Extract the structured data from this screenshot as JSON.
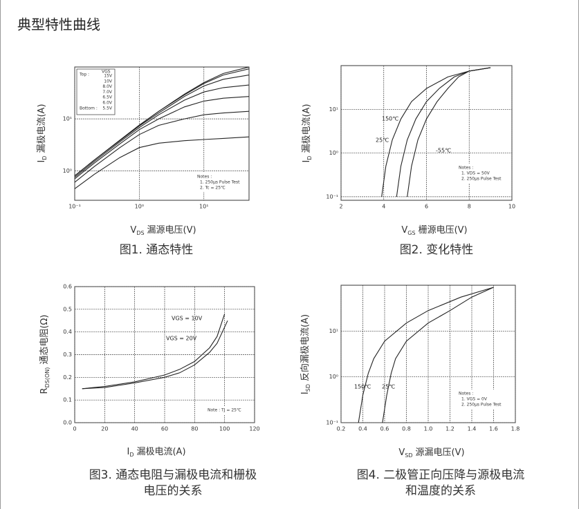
{
  "header": {
    "title": "典型特性曲线"
  },
  "chart_data": [
    {
      "type": "line",
      "xlog": true,
      "ylog": true,
      "grid": true,
      "color": "#222",
      "xlabel": {
        "symbol": "V",
        "sub": "DS",
        "text": "漏源电压(V)"
      },
      "ylabel": {
        "symbol": "I",
        "sub": "D",
        "text": "漏极电流(A)"
      },
      "caption": [
        "图1. 通态特性"
      ],
      "xlim": [
        0.1,
        50
      ],
      "ylim": [
        0.27,
        100
      ],
      "xticks": [
        {
          "value": 0.1,
          "label": "10⁻¹"
        },
        {
          "value": 1,
          "label": "10⁰"
        },
        {
          "value": 10,
          "label": "10¹"
        }
      ],
      "yticks": [
        {
          "value": 1,
          "label": "10⁰"
        },
        {
          "value": 10,
          "label": "10¹"
        }
      ],
      "legend": {
        "title": "VGS",
        "top_label": "Top :",
        "bottom_label": "Bottom :"
      },
      "notes": [
        "Notes :",
        "1. 250μs Pulse Test",
        "2. Tc = 25℃"
      ],
      "x": [
        0.1,
        0.2,
        0.5,
        1,
        2,
        5,
        10,
        20,
        50
      ],
      "series": [
        {
          "name": "15V",
          "values": [
            0.8,
            1.6,
            3.9,
            7.6,
            14,
            30,
            50,
            75,
            100
          ]
        },
        {
          "name": "10V",
          "values": [
            0.8,
            1.6,
            3.9,
            7.5,
            14,
            29,
            48,
            70,
            92
          ]
        },
        {
          "name": "8.0V",
          "values": [
            0.8,
            1.6,
            3.8,
            7.3,
            13,
            27,
            43,
            58,
            70
          ]
        },
        {
          "name": "7.0V",
          "values": [
            0.75,
            1.5,
            3.6,
            6.8,
            12,
            23,
            33,
            40,
            45
          ]
        },
        {
          "name": "6.5V",
          "values": [
            0.7,
            1.4,
            3.3,
            6.2,
            10,
            17,
            22,
            25,
            27
          ]
        },
        {
          "name": "6.0V",
          "values": [
            0.6,
            1.2,
            2.8,
            5,
            7.5,
            10,
            12,
            13,
            14
          ]
        },
        {
          "name": "5.5V",
          "values": [
            0.45,
            0.85,
            1.8,
            2.8,
            3.4,
            3.8,
            4,
            4.2,
            4.5
          ]
        }
      ]
    },
    {
      "type": "line",
      "xlog": false,
      "ylog": true,
      "grid": true,
      "color": "#222",
      "xlabel": {
        "symbol": "V",
        "sub": "GS",
        "text": "栅源电压(V)"
      },
      "ylabel": {
        "symbol": "I",
        "sub": "D",
        "text": "漏极电流(A)"
      },
      "caption": [
        "图2. 变化特性"
      ],
      "xlim": [
        2,
        10
      ],
      "ylim": [
        0.083,
        100
      ],
      "xticks": [
        2,
        4,
        6,
        8,
        10
      ],
      "yticks": [
        {
          "value": 0.1,
          "label": "10⁻¹"
        },
        {
          "value": 1,
          "label": "10⁰"
        },
        {
          "value": 10,
          "label": "10¹"
        }
      ],
      "notes": [
        "Notes :",
        "1. VDS = 50V",
        "2. 250μs Pulse Test"
      ],
      "series": [
        {
          "name": "150℃",
          "x": [
            3.9,
            4.1,
            4.4,
            4.8,
            5.3,
            6,
            7,
            8,
            9
          ],
          "values": [
            0.1,
            0.5,
            2,
            6,
            15,
            30,
            55,
            75,
            90
          ]
        },
        {
          "name": "25℃",
          "x": [
            4.6,
            4.8,
            5.1,
            5.5,
            6,
            6.6,
            7.3,
            8,
            9
          ],
          "values": [
            0.1,
            0.5,
            2,
            6,
            15,
            30,
            55,
            75,
            90
          ]
        },
        {
          "name": "-55℃",
          "x": [
            5.1,
            5.3,
            5.6,
            6,
            6.5,
            7,
            7.5,
            8,
            9
          ],
          "values": [
            0.1,
            0.5,
            2,
            6,
            15,
            30,
            55,
            75,
            90
          ]
        }
      ]
    },
    {
      "type": "line",
      "xlog": false,
      "ylog": false,
      "grid": true,
      "color": "#222",
      "xlabel": {
        "symbol": "I",
        "sub": "D",
        "text": "漏极电流(A)"
      },
      "ylabel": {
        "symbol": "R",
        "sub": "DS(ON)",
        "text": "通态电阻(Ω)"
      },
      "caption": [
        "图3. 通态电阻与漏极电流和栅极",
        "电压的关系"
      ],
      "xlim": [
        0,
        120
      ],
      "ylim": [
        0,
        0.6
      ],
      "xticks": [
        0,
        20,
        40,
        60,
        80,
        100,
        120
      ],
      "yticks": [
        {
          "value": 0,
          "label": "0.0"
        },
        0.1,
        0.2,
        0.3,
        0.4,
        0.5,
        0.6
      ],
      "notes": [
        "Note : TJ = 25℃"
      ],
      "series": [
        {
          "name": "VGS = 10V",
          "x": [
            5,
            20,
            40,
            60,
            70,
            80,
            90,
            95,
            100
          ],
          "values": [
            0.15,
            0.16,
            0.18,
            0.21,
            0.235,
            0.27,
            0.33,
            0.38,
            0.48
          ]
        },
        {
          "name": "VGS = 20V",
          "x": [
            5,
            20,
            40,
            60,
            70,
            80,
            90,
            95,
            102
          ],
          "values": [
            0.15,
            0.155,
            0.175,
            0.2,
            0.22,
            0.255,
            0.31,
            0.35,
            0.45
          ]
        }
      ]
    },
    {
      "type": "line",
      "xlog": false,
      "ylog": true,
      "grid": true,
      "color": "#222",
      "xlabel": {
        "symbol": "V",
        "sub": "SD",
        "text": "源漏电压(V)"
      },
      "ylabel": {
        "symbol": "I",
        "sub": "SD",
        "text": "反向漏极电流(A)"
      },
      "caption": [
        "图4. 二极管正向压降与源极电流",
        "和温度的关系"
      ],
      "xlim": [
        0.2,
        1.8
      ],
      "ylim": [
        0.1,
        100
      ],
      "xticks": [
        0.2,
        0.4,
        0.6,
        0.8,
        {
          "value": 1,
          "label": "1.0"
        },
        1.2,
        1.4,
        1.6,
        1.8
      ],
      "yticks": [
        {
          "value": 0.1,
          "label": "10⁻¹"
        },
        {
          "value": 1,
          "label": "10⁰"
        },
        {
          "value": 10,
          "label": "10¹"
        }
      ],
      "notes": [
        "Notes :",
        "1. VGS = 0V",
        "2. 250μs Pulse Test"
      ],
      "series": [
        {
          "name": "150℃",
          "x": [
            0.36,
            0.4,
            0.45,
            0.5,
            0.6,
            0.8,
            1.0,
            1.3,
            1.6
          ],
          "values": [
            0.1,
            0.4,
            1.2,
            2.5,
            6,
            15,
            28,
            55,
            90
          ]
        },
        {
          "name": "25℃",
          "x": [
            0.58,
            0.62,
            0.66,
            0.7,
            0.8,
            1.0,
            1.2,
            1.4,
            1.6
          ],
          "values": [
            0.1,
            0.4,
            1.2,
            2.5,
            6,
            15,
            28,
            55,
            90
          ]
        }
      ]
    }
  ]
}
